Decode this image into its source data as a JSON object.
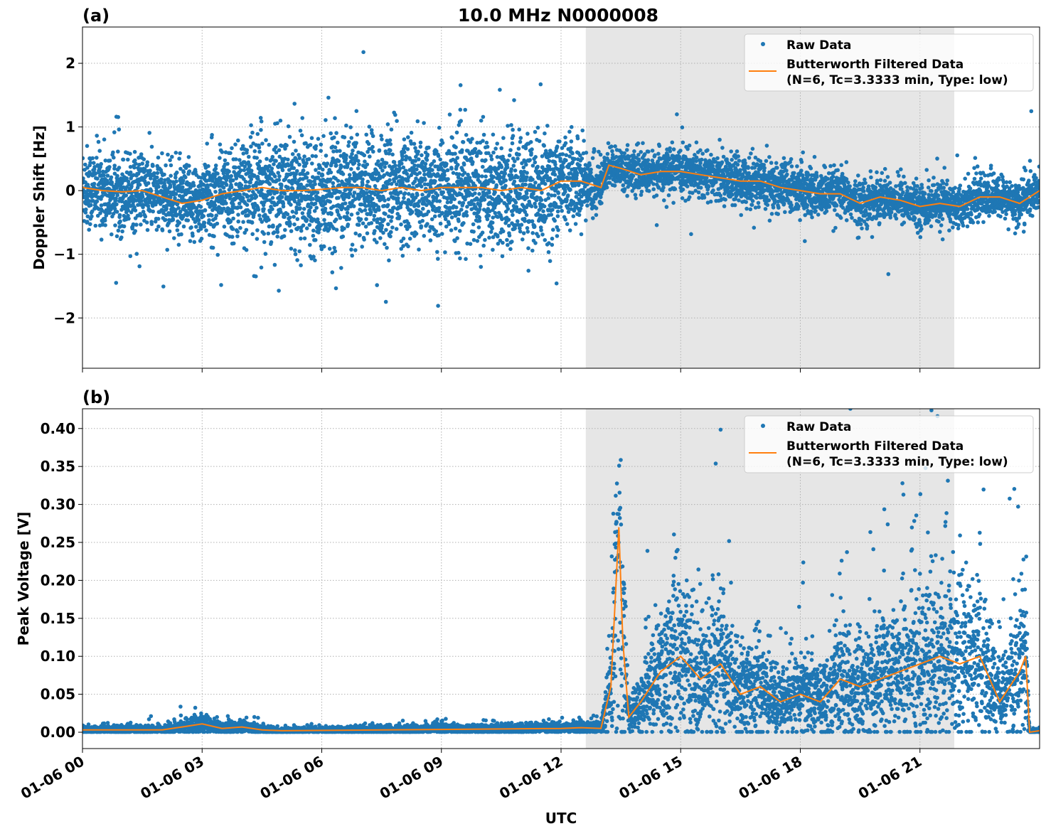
{
  "chart_data": {
    "type": "scatter",
    "title": "10.0 MHz N0000008",
    "xlabel": "UTC",
    "x_units": "hours since 01-06 00",
    "xlim": [
      0,
      24
    ],
    "x_ticks": [
      0,
      3,
      6,
      9,
      12,
      15,
      18,
      21
    ],
    "x_tick_labels": [
      "01-06 00",
      "01-06 03",
      "01-06 06",
      "01-06 09",
      "01-06 12",
      "01-06 15",
      "01-06 18",
      "01-06 21"
    ],
    "shaded_span": [
      12.62,
      21.86
    ],
    "colors": {
      "raw": "#1f77b4",
      "filtered": "#ff7f0e",
      "span": "#e6e6e6"
    },
    "legend": {
      "placement": "top-right",
      "raw_label": "Raw Data",
      "filtered_label_1": "Butterworth Filtered Data",
      "filtered_label_2": "(N=6, Tc=3.3333 min, Type: low)"
    },
    "panels": [
      {
        "label": "(a)",
        "ylabel": "Doppler Shift [Hz]",
        "ylim": [
          -2.79,
          2.57
        ],
        "y_ticks": [
          -2,
          -1,
          0,
          1,
          2
        ],
        "y_tick_labels": [
          "−2",
          "−1",
          "0",
          "1",
          "2"
        ],
        "filtered": {
          "x": [
            0,
            0.5,
            1,
            1.5,
            2,
            2.5,
            3,
            3.5,
            4,
            4.5,
            5,
            5.5,
            6,
            6.5,
            7,
            7.5,
            8,
            8.5,
            9,
            9.5,
            10,
            10.5,
            11,
            11.5,
            12,
            12.5,
            13,
            13.2,
            13.5,
            14,
            14.5,
            15,
            15.5,
            16,
            16.5,
            17,
            17.5,
            18,
            18.5,
            19,
            19.5,
            20,
            20.5,
            21,
            21.5,
            22,
            22.5,
            23,
            23.5,
            24
          ],
          "y": [
            0.05,
            0.0,
            -0.02,
            0.0,
            -0.1,
            -0.2,
            -0.15,
            -0.05,
            0.0,
            0.05,
            0.0,
            0.0,
            0.02,
            0.05,
            0.05,
            0.0,
            0.05,
            0.0,
            0.05,
            0.05,
            0.05,
            0.0,
            0.05,
            0.0,
            0.15,
            0.15,
            0.05,
            0.4,
            0.35,
            0.25,
            0.3,
            0.3,
            0.25,
            0.2,
            0.15,
            0.15,
            0.05,
            0.0,
            -0.05,
            -0.05,
            -0.2,
            -0.1,
            -0.15,
            -0.25,
            -0.2,
            -0.25,
            -0.1,
            -0.1,
            -0.2,
            0.0
          ]
        },
        "raw_spread": {
          "x": [
            0,
            2,
            3,
            4.5,
            11.5,
            12.6,
            13.2,
            17.5,
            20,
            24
          ],
          "y": [
            0.33,
            0.28,
            0.3,
            0.42,
            0.42,
            0.28,
            0.14,
            0.2,
            0.16,
            0.16
          ]
        },
        "raw_points_count": 7000
      },
      {
        "label": "(b)",
        "ylabel": "Peak Voltage [V]",
        "ylim": [
          -0.0215,
          0.426
        ],
        "y_ticks": [
          0,
          0.05,
          0.1,
          0.15,
          0.2,
          0.25,
          0.3,
          0.35,
          0.4
        ],
        "y_tick_labels": [
          "0.00",
          "0.05",
          "0.10",
          "0.15",
          "0.20",
          "0.25",
          "0.30",
          "0.35",
          "0.40"
        ],
        "filtered": {
          "x": [
            0,
            2,
            2.5,
            3,
            3.5,
            4,
            4.5,
            5,
            12,
            12.5,
            13,
            13.25,
            13.45,
            13.55,
            13.7,
            14,
            14.5,
            15,
            15.5,
            16,
            16.5,
            17,
            17.5,
            18,
            18.5,
            19,
            19.5,
            20,
            20.5,
            21,
            21.5,
            22,
            22.5,
            23,
            23.5,
            23.65,
            23.75,
            24
          ],
          "y": [
            0.003,
            0.003,
            0.007,
            0.011,
            0.005,
            0.007,
            0.003,
            0.002,
            0.005,
            0.006,
            0.005,
            0.06,
            0.27,
            0.12,
            0.02,
            0.04,
            0.08,
            0.1,
            0.07,
            0.09,
            0.05,
            0.06,
            0.04,
            0.05,
            0.04,
            0.07,
            0.06,
            0.07,
            0.08,
            0.09,
            0.1,
            0.09,
            0.1,
            0.04,
            0.08,
            0.1,
            0.0,
            0.002
          ]
        },
        "raw_points_count": 7000
      }
    ]
  }
}
